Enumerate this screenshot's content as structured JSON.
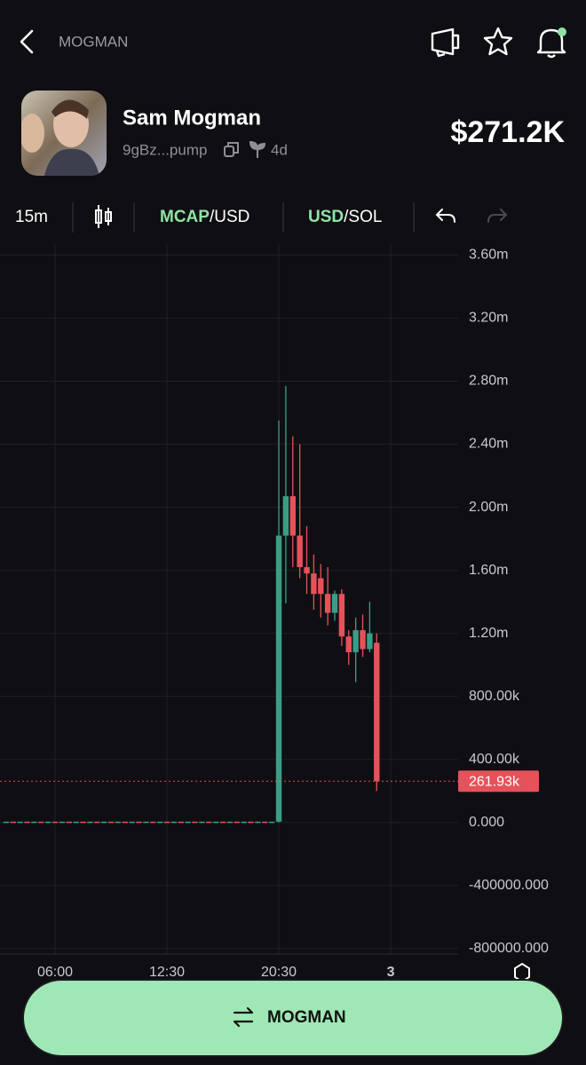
{
  "header": {
    "title": "MOGMAN"
  },
  "token": {
    "name": "Sam Mogman",
    "address": "9gBz...pump",
    "age": "4d",
    "price": "$271.2K"
  },
  "toolbar": {
    "interval": "15m",
    "metric": "MCAP",
    "metric_unit": "/USD",
    "quote": "USD",
    "quote_unit": "/SOL"
  },
  "chart_data": {
    "type": "candlestick",
    "categories": [
      null,
      null,
      null,
      null,
      null,
      null,
      null,
      "06:00",
      null,
      null,
      null,
      null,
      null,
      null,
      null,
      null,
      null,
      null,
      null,
      null,
      null,
      null,
      null,
      "12:30",
      null,
      null,
      null,
      null,
      null,
      null,
      null,
      null,
      null,
      null,
      null,
      null,
      null,
      null,
      null,
      "20:30",
      null,
      null,
      null,
      null,
      null,
      null,
      null,
      null,
      null,
      null,
      null,
      null,
      null,
      null,
      null,
      "3"
    ],
    "open": [
      4000,
      5000,
      4000,
      5000,
      4000,
      5000,
      4000,
      5000,
      4000,
      5000,
      4000,
      5000,
      4000,
      5000,
      4000,
      5000,
      4000,
      5000,
      4000,
      5000,
      4000,
      5000,
      4000,
      5000,
      4000,
      5000,
      4000,
      5000,
      4000,
      5000,
      4000,
      5000,
      4000,
      5000,
      4000,
      5000,
      4000,
      5000,
      4000,
      5000,
      1820000,
      2070000,
      1820000,
      1620000,
      1580000,
      1550000,
      1450000,
      1330000,
      1450000,
      1180000,
      1080000,
      1220000,
      1100000,
      1140000,
      null,
      null
    ],
    "high": [
      5000,
      5000,
      5000,
      5000,
      5000,
      5000,
      5000,
      5000,
      5000,
      5000,
      5000,
      5000,
      5000,
      5000,
      5000,
      5000,
      5000,
      5000,
      5000,
      5000,
      5000,
      5000,
      5000,
      5000,
      5000,
      5000,
      5000,
      5000,
      5000,
      5000,
      5000,
      5000,
      5000,
      5000,
      5000,
      5000,
      5000,
      5000,
      5000,
      2550000,
      2770000,
      2450000,
      2400000,
      1880000,
      1700000,
      1640000,
      1620000,
      1470000,
      1480000,
      1220000,
      1300000,
      1320000,
      1400000,
      1200000,
      null,
      null
    ],
    "low": [
      4000,
      4000,
      4000,
      4000,
      4000,
      4000,
      4000,
      4000,
      4000,
      4000,
      4000,
      4000,
      4000,
      4000,
      4000,
      4000,
      4000,
      4000,
      4000,
      4000,
      4000,
      4000,
      4000,
      4000,
      4000,
      4000,
      4000,
      4000,
      4000,
      4000,
      4000,
      4000,
      4000,
      4000,
      4000,
      4000,
      4000,
      4000,
      4000,
      0,
      1390000,
      1620000,
      1550000,
      1450000,
      1350000,
      1300000,
      1250000,
      1280000,
      1120000,
      1000000,
      890000,
      1050000,
      1080000,
      200000,
      null,
      null
    ],
    "close": [
      5000,
      4000,
      5000,
      4000,
      5000,
      4000,
      5000,
      4000,
      5000,
      4000,
      5000,
      4000,
      5000,
      4000,
      5000,
      4000,
      5000,
      4000,
      5000,
      4000,
      5000,
      4000,
      5000,
      4000,
      5000,
      4000,
      5000,
      4000,
      5000,
      4000,
      5000,
      4000,
      5000,
      4000,
      5000,
      4000,
      5000,
      4000,
      5000,
      1820000,
      2070000,
      1820000,
      1620000,
      1580000,
      1450000,
      1450000,
      1330000,
      1450000,
      1180000,
      1080000,
      1220000,
      1100000,
      1200000,
      262000,
      null,
      null
    ],
    "up_color": "#3a9e86",
    "down_color": "#e5525a",
    "ylim": [
      -835000,
      3670000
    ],
    "yticks": [
      {
        "value": 3600000,
        "label": "3.60m"
      },
      {
        "value": 3200000,
        "label": "3.20m"
      },
      {
        "value": 2800000,
        "label": "2.80m"
      },
      {
        "value": 2400000,
        "label": "2.40m"
      },
      {
        "value": 2000000,
        "label": "2.00m"
      },
      {
        "value": 1600000,
        "label": "1.60m"
      },
      {
        "value": 1200000,
        "label": "1.20m"
      },
      {
        "value": 800000,
        "label": "800.00k"
      },
      {
        "value": 400000,
        "label": "400.00k"
      },
      {
        "value": 0,
        "label": "0.000"
      },
      {
        "value": -400000,
        "label": "-400000.000"
      },
      {
        "value": -800000,
        "label": "-800000.000"
      }
    ],
    "last_price": {
      "value": 261930,
      "label": "261.93k"
    },
    "grid": true
  },
  "button": {
    "label": "MOGMAN"
  }
}
